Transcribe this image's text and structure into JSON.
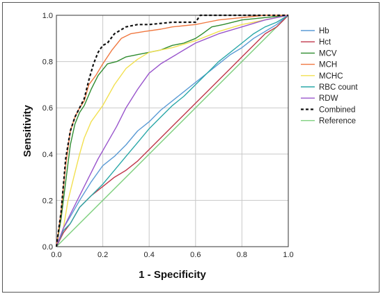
{
  "chart_data": {
    "type": "line",
    "title": "",
    "xlabel": "1 - Specificity",
    "ylabel": "Sensitivity",
    "xlim": [
      0,
      1
    ],
    "ylim": [
      0,
      1
    ],
    "x_ticks": [
      "0.0",
      "0.2",
      "0.4",
      "0.6",
      "0.8",
      "1.0"
    ],
    "y_ticks": [
      "0.0",
      "0.2",
      "0.4",
      "0.6",
      "0.8",
      "1.0"
    ],
    "grid": true,
    "legend_position": "right",
    "series": [
      {
        "name": "Hb",
        "color": "#5b9bd5",
        "dash": "none",
        "x": [
          0,
          0.03,
          0.06,
          0.1,
          0.15,
          0.2,
          0.25,
          0.3,
          0.35,
          0.4,
          0.45,
          0.5,
          0.55,
          0.6,
          0.65,
          0.7,
          0.75,
          0.8,
          0.85,
          0.9,
          0.95,
          1.0
        ],
        "y": [
          0,
          0.08,
          0.13,
          0.2,
          0.28,
          0.35,
          0.39,
          0.44,
          0.5,
          0.54,
          0.59,
          0.63,
          0.67,
          0.71,
          0.75,
          0.79,
          0.83,
          0.86,
          0.9,
          0.93,
          0.96,
          1.0
        ]
      },
      {
        "name": "Hct",
        "color": "#c0364a",
        "dash": "none",
        "x": [
          0,
          0.03,
          0.06,
          0.1,
          0.15,
          0.2,
          0.25,
          0.3,
          0.35,
          0.4,
          0.45,
          0.5,
          0.55,
          0.6,
          0.65,
          0.7,
          0.75,
          0.8,
          0.85,
          0.9,
          0.95,
          1.0
        ],
        "y": [
          0,
          0.06,
          0.1,
          0.17,
          0.22,
          0.26,
          0.3,
          0.33,
          0.37,
          0.42,
          0.47,
          0.52,
          0.57,
          0.62,
          0.67,
          0.72,
          0.77,
          0.82,
          0.87,
          0.92,
          0.95,
          1.0
        ]
      },
      {
        "name": "MCV",
        "color": "#2e8b2e",
        "dash": "none",
        "x": [
          0,
          0.02,
          0.04,
          0.06,
          0.08,
          0.1,
          0.12,
          0.15,
          0.18,
          0.22,
          0.26,
          0.3,
          0.35,
          0.4,
          0.45,
          0.5,
          0.55,
          0.6,
          0.63,
          0.67,
          0.72,
          0.8,
          0.9,
          1.0
        ],
        "y": [
          0,
          0.12,
          0.28,
          0.44,
          0.53,
          0.58,
          0.61,
          0.68,
          0.74,
          0.79,
          0.8,
          0.82,
          0.83,
          0.84,
          0.85,
          0.87,
          0.88,
          0.9,
          0.92,
          0.95,
          0.96,
          0.98,
          0.99,
          1.0
        ]
      },
      {
        "name": "MCH",
        "color": "#f07840",
        "dash": "none",
        "x": [
          0,
          0.02,
          0.04,
          0.06,
          0.08,
          0.1,
          0.12,
          0.14,
          0.17,
          0.2,
          0.24,
          0.28,
          0.32,
          0.38,
          0.45,
          0.5,
          0.55,
          0.6,
          0.65,
          0.7,
          0.8,
          0.9,
          1.0
        ],
        "y": [
          0,
          0.15,
          0.35,
          0.5,
          0.56,
          0.6,
          0.63,
          0.7,
          0.74,
          0.79,
          0.85,
          0.9,
          0.92,
          0.93,
          0.94,
          0.95,
          0.955,
          0.96,
          0.97,
          0.98,
          0.99,
          1.0,
          1.0
        ]
      },
      {
        "name": "MCHC",
        "color": "#f2e050",
        "dash": "none",
        "x": [
          0,
          0.03,
          0.05,
          0.08,
          0.1,
          0.12,
          0.15,
          0.2,
          0.25,
          0.3,
          0.35,
          0.4,
          0.45,
          0.5,
          0.6,
          0.7,
          0.8,
          0.9,
          1.0
        ],
        "y": [
          0,
          0.08,
          0.2,
          0.32,
          0.4,
          0.47,
          0.54,
          0.61,
          0.7,
          0.77,
          0.81,
          0.84,
          0.85,
          0.86,
          0.89,
          0.93,
          0.96,
          0.98,
          1.0
        ]
      },
      {
        "name": "RBC count",
        "color": "#2aa8a8",
        "dash": "none",
        "x": [
          0,
          0.03,
          0.06,
          0.1,
          0.15,
          0.2,
          0.25,
          0.3,
          0.35,
          0.4,
          0.45,
          0.5,
          0.55,
          0.6,
          0.65,
          0.7,
          0.75,
          0.8,
          0.85,
          0.9,
          0.95,
          1.0
        ],
        "y": [
          0,
          0.07,
          0.1,
          0.17,
          0.22,
          0.27,
          0.33,
          0.39,
          0.45,
          0.51,
          0.56,
          0.61,
          0.65,
          0.7,
          0.75,
          0.8,
          0.84,
          0.88,
          0.92,
          0.95,
          0.97,
          1.0
        ]
      },
      {
        "name": "RDW",
        "color": "#9955cc",
        "dash": "none",
        "x": [
          0,
          0.03,
          0.06,
          0.1,
          0.14,
          0.18,
          0.22,
          0.26,
          0.3,
          0.35,
          0.4,
          0.45,
          0.5,
          0.55,
          0.6,
          0.65,
          0.7,
          0.8,
          0.9,
          1.0
        ],
        "y": [
          0,
          0.08,
          0.14,
          0.22,
          0.3,
          0.38,
          0.45,
          0.52,
          0.6,
          0.68,
          0.75,
          0.79,
          0.82,
          0.85,
          0.88,
          0.9,
          0.92,
          0.95,
          0.98,
          1.0
        ]
      },
      {
        "name": "Combined",
        "color": "#111111",
        "dash": "4,3",
        "x": [
          0,
          0.02,
          0.04,
          0.06,
          0.08,
          0.1,
          0.12,
          0.14,
          0.16,
          0.18,
          0.2,
          0.22,
          0.25,
          0.3,
          0.35,
          0.4,
          0.5,
          0.6,
          0.62,
          0.7,
          0.8,
          0.9,
          1.0
        ],
        "y": [
          0,
          0.15,
          0.38,
          0.5,
          0.56,
          0.6,
          0.64,
          0.72,
          0.79,
          0.84,
          0.87,
          0.88,
          0.92,
          0.95,
          0.96,
          0.96,
          0.97,
          0.97,
          1.0,
          1.0,
          1.0,
          1.0,
          1.0
        ]
      },
      {
        "name": "Reference",
        "color": "#7ccf7c",
        "dash": "none",
        "x": [
          0,
          1.0
        ],
        "y": [
          0,
          1.0
        ]
      }
    ]
  }
}
